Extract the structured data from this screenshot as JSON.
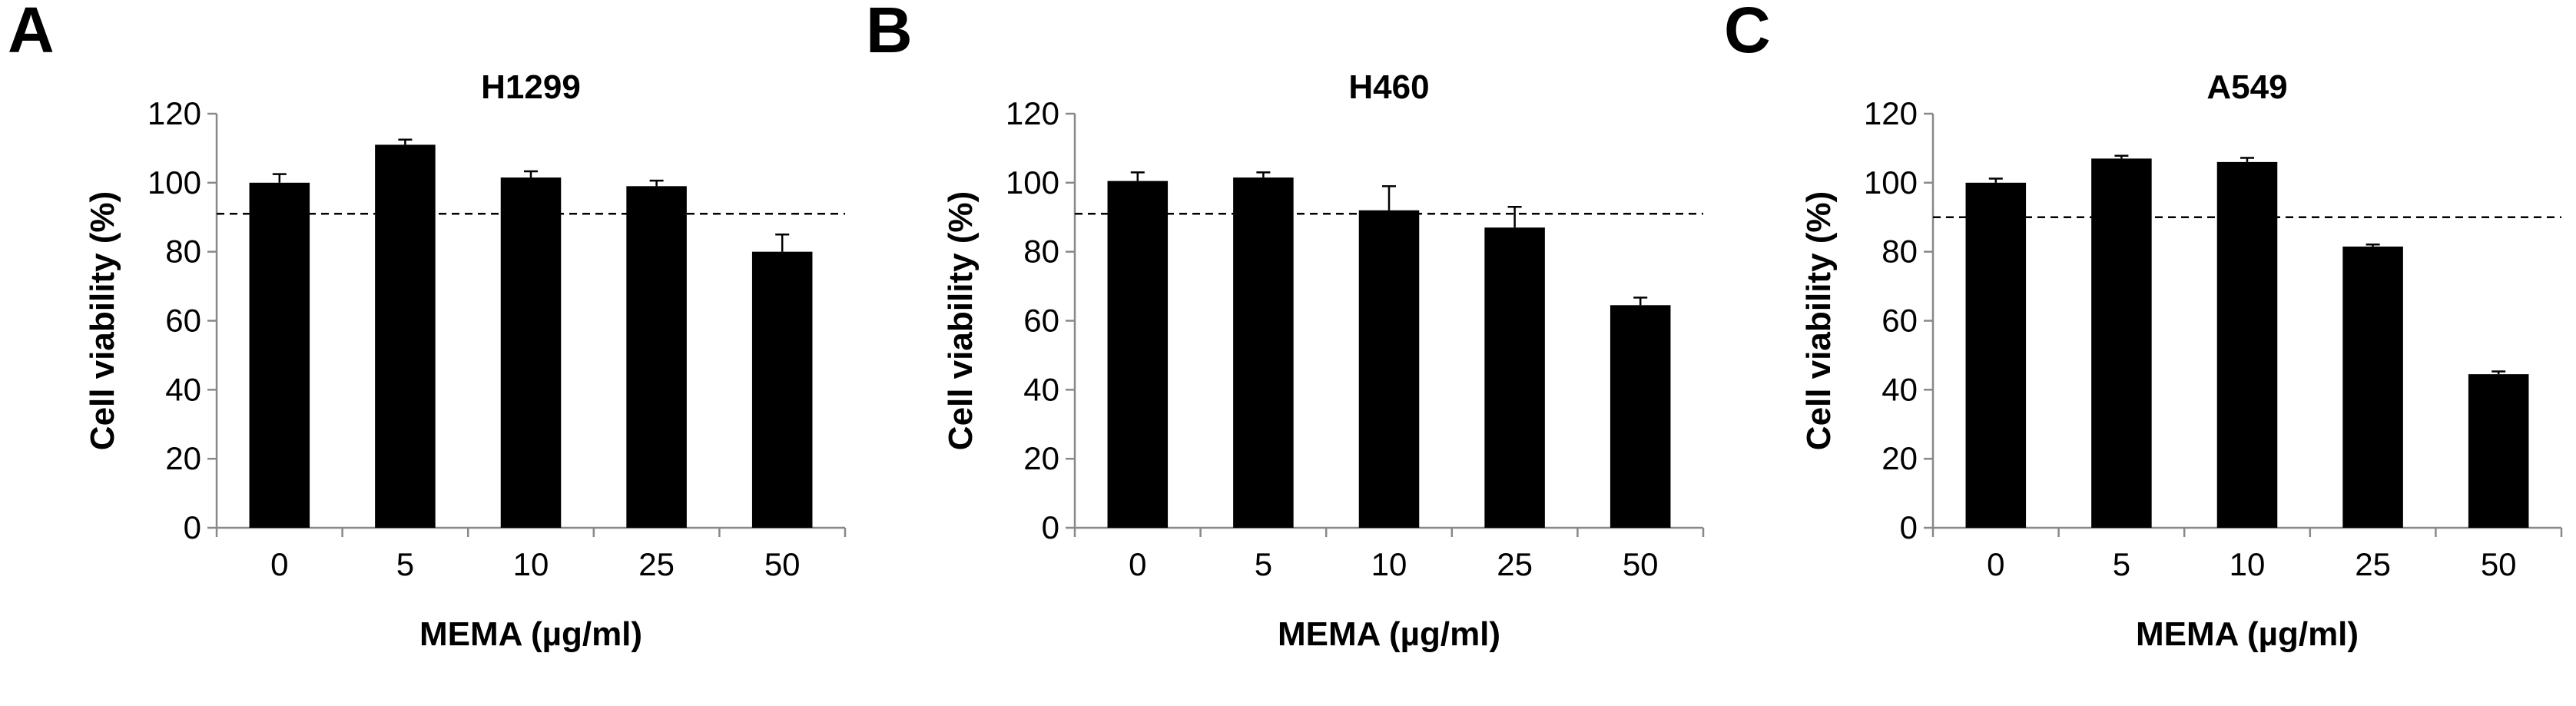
{
  "chart_data": [
    {
      "type": "bar",
      "panel_label": "A",
      "title": "H1299",
      "xlabel": "MEMA (µg/ml)",
      "ylabel": "Cell viability (%)",
      "categories": [
        "0",
        "5",
        "10",
        "25",
        "50"
      ],
      "values": [
        100,
        111,
        101.5,
        99,
        80
      ],
      "errors": [
        2.5,
        1.5,
        1.8,
        1.6,
        5
      ],
      "reference_line": 91,
      "ylim": [
        0,
        120
      ],
      "yticks": [
        0,
        20,
        40,
        60,
        80,
        100,
        120
      ],
      "grid": false,
      "bar_color": "#000000"
    },
    {
      "type": "bar",
      "panel_label": "B",
      "title": "H460",
      "xlabel": "MEMA (µg/ml)",
      "ylabel": "Cell viability (%)",
      "categories": [
        "0",
        "5",
        "10",
        "25",
        "50"
      ],
      "values": [
        100.5,
        101.5,
        92,
        87,
        64.5
      ],
      "errors": [
        2.5,
        1.5,
        7,
        6,
        2.2
      ],
      "reference_line": 91,
      "ylim": [
        0,
        120
      ],
      "yticks": [
        0,
        20,
        40,
        60,
        80,
        100,
        120
      ],
      "grid": false,
      "bar_color": "#000000"
    },
    {
      "type": "bar",
      "panel_label": "C",
      "title": "A549",
      "xlabel": "MEMA (µg/ml)",
      "ylabel": "Cell viability (%)",
      "categories": [
        "0",
        "5",
        "10",
        "25",
        "50"
      ],
      "values": [
        100,
        107,
        106,
        81.5,
        44.5
      ],
      "errors": [
        1.2,
        0.8,
        1.2,
        0.6,
        0.8
      ],
      "reference_line": 90,
      "ylim": [
        0,
        120
      ],
      "yticks": [
        0,
        20,
        40,
        60,
        80,
        100,
        120
      ],
      "grid": false,
      "bar_color": "#000000"
    }
  ]
}
